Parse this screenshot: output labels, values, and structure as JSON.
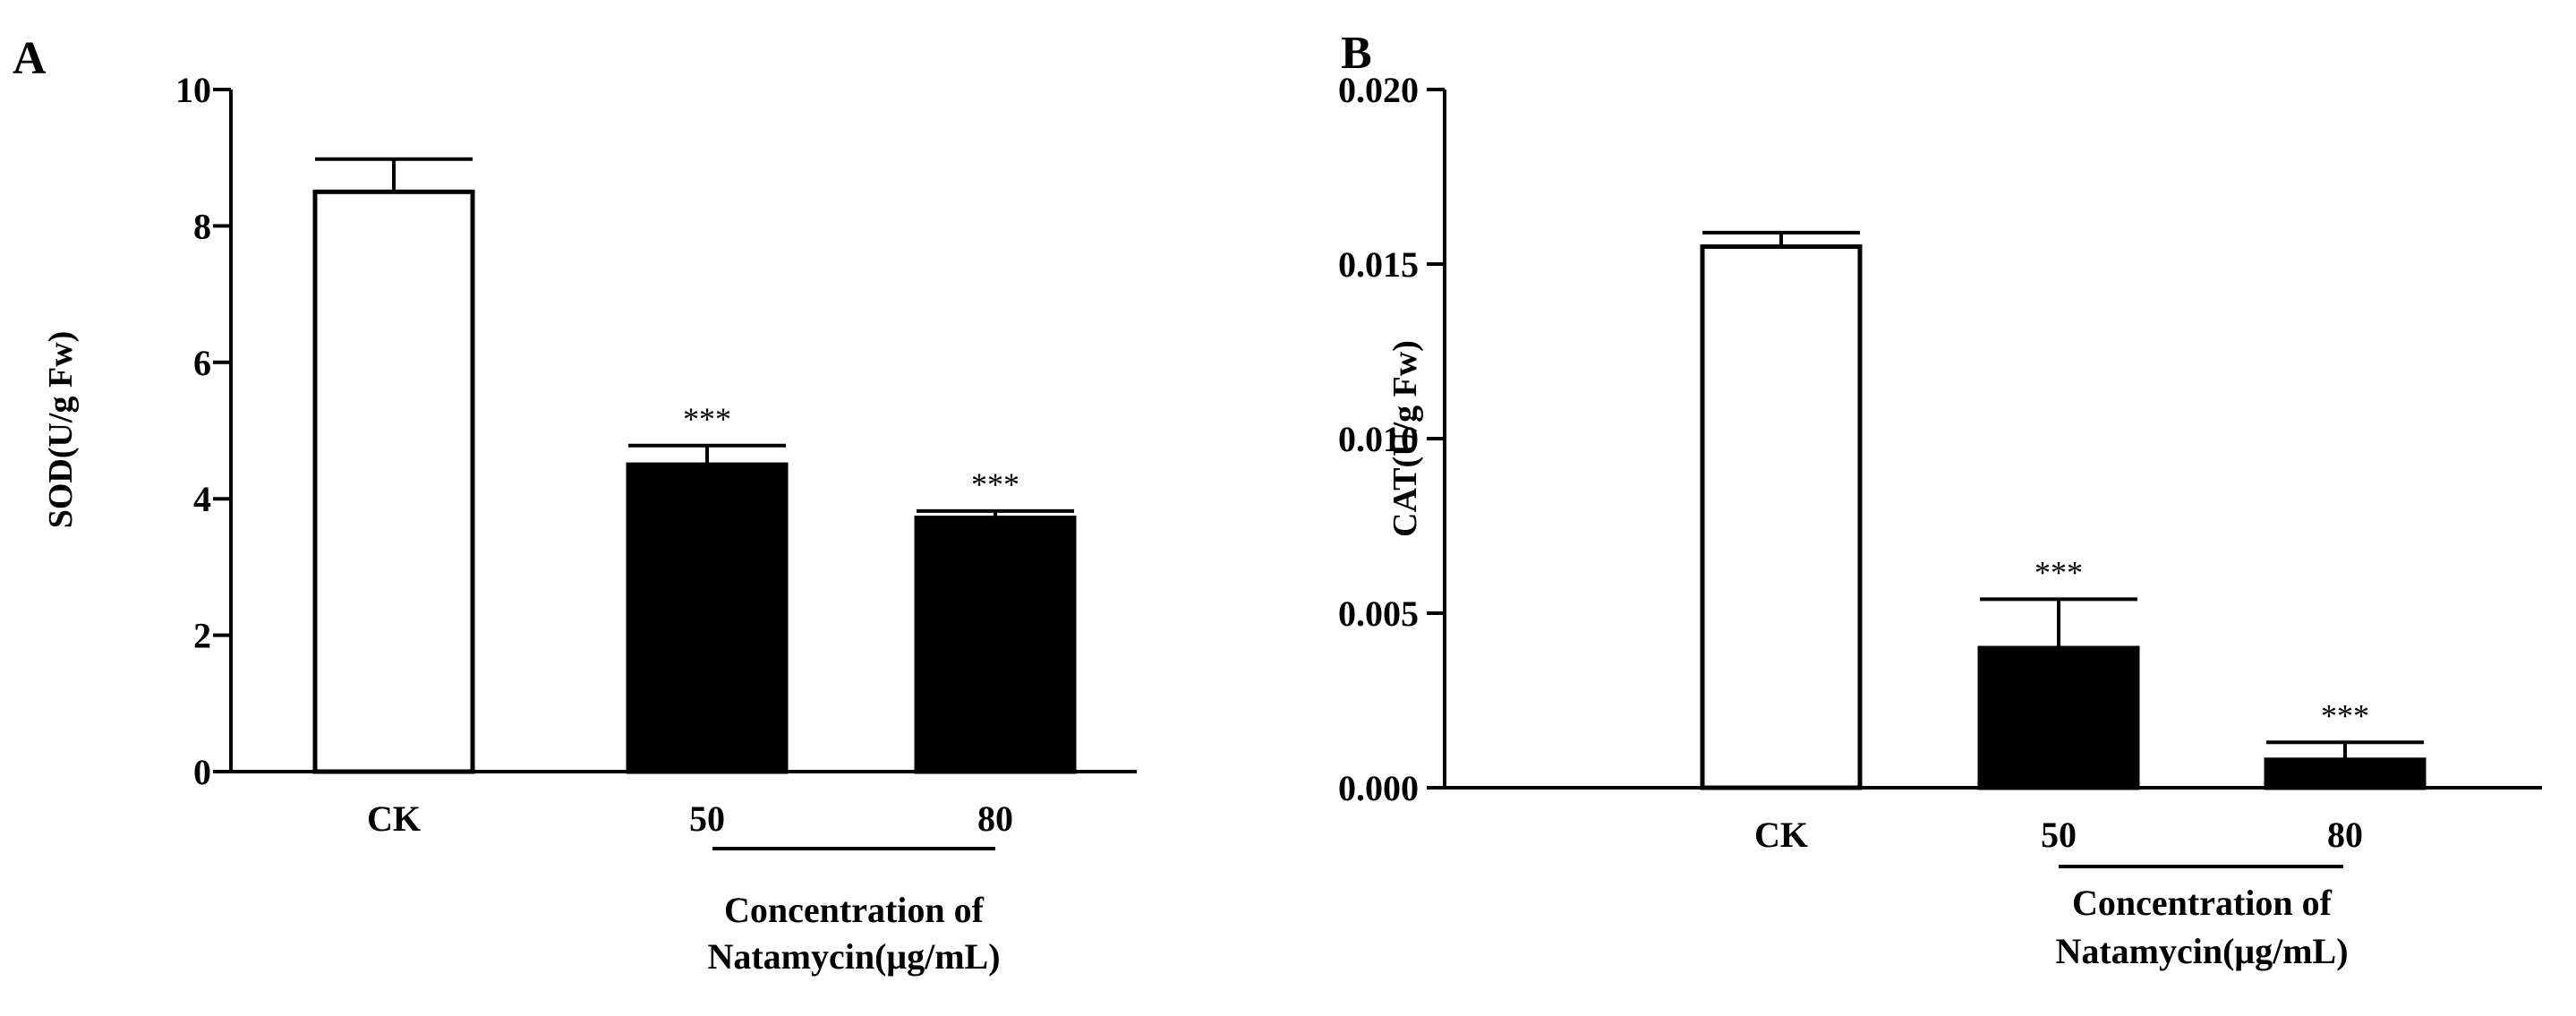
{
  "chart_data": [
    {
      "type": "bar",
      "panel": "A",
      "categories": [
        "CK",
        "50",
        "80"
      ],
      "values": [
        8.5,
        4.5,
        3.72
      ],
      "errors": [
        0.48,
        0.28,
        0.1
      ],
      "fills": [
        "#ffffff",
        "#000000",
        "#000000"
      ],
      "annotations": [
        "",
        "***",
        "***"
      ],
      "ylabel": "SOD(U/g Fw)",
      "ylim": [
        0,
        10
      ],
      "yticks": [
        "0",
        "2",
        "4",
        "6",
        "8",
        "10"
      ],
      "xlabel_line1": "Concentration of",
      "xlabel_line2": "Natamycin(μg/mL)",
      "grid": false
    },
    {
      "type": "bar",
      "panel": "B",
      "categories": [
        "CK",
        "50",
        "80"
      ],
      "values": [
        0.0155,
        0.004,
        0.0008
      ],
      "errors": [
        0.0004,
        0.0014,
        0.0005
      ],
      "fills": [
        "#ffffff",
        "#000000",
        "#000000"
      ],
      "annotations": [
        "",
        "***",
        "***"
      ],
      "ylabel": "CAT(U/g Fw)",
      "ylim": [
        0,
        0.02
      ],
      "yticks": [
        "0.000",
        "0.005",
        "0.010",
        "0.015",
        "0.020"
      ],
      "xlabel_line1": "Concentration of",
      "xlabel_line2": "Natamycin(μg/mL)",
      "grid": false
    }
  ]
}
